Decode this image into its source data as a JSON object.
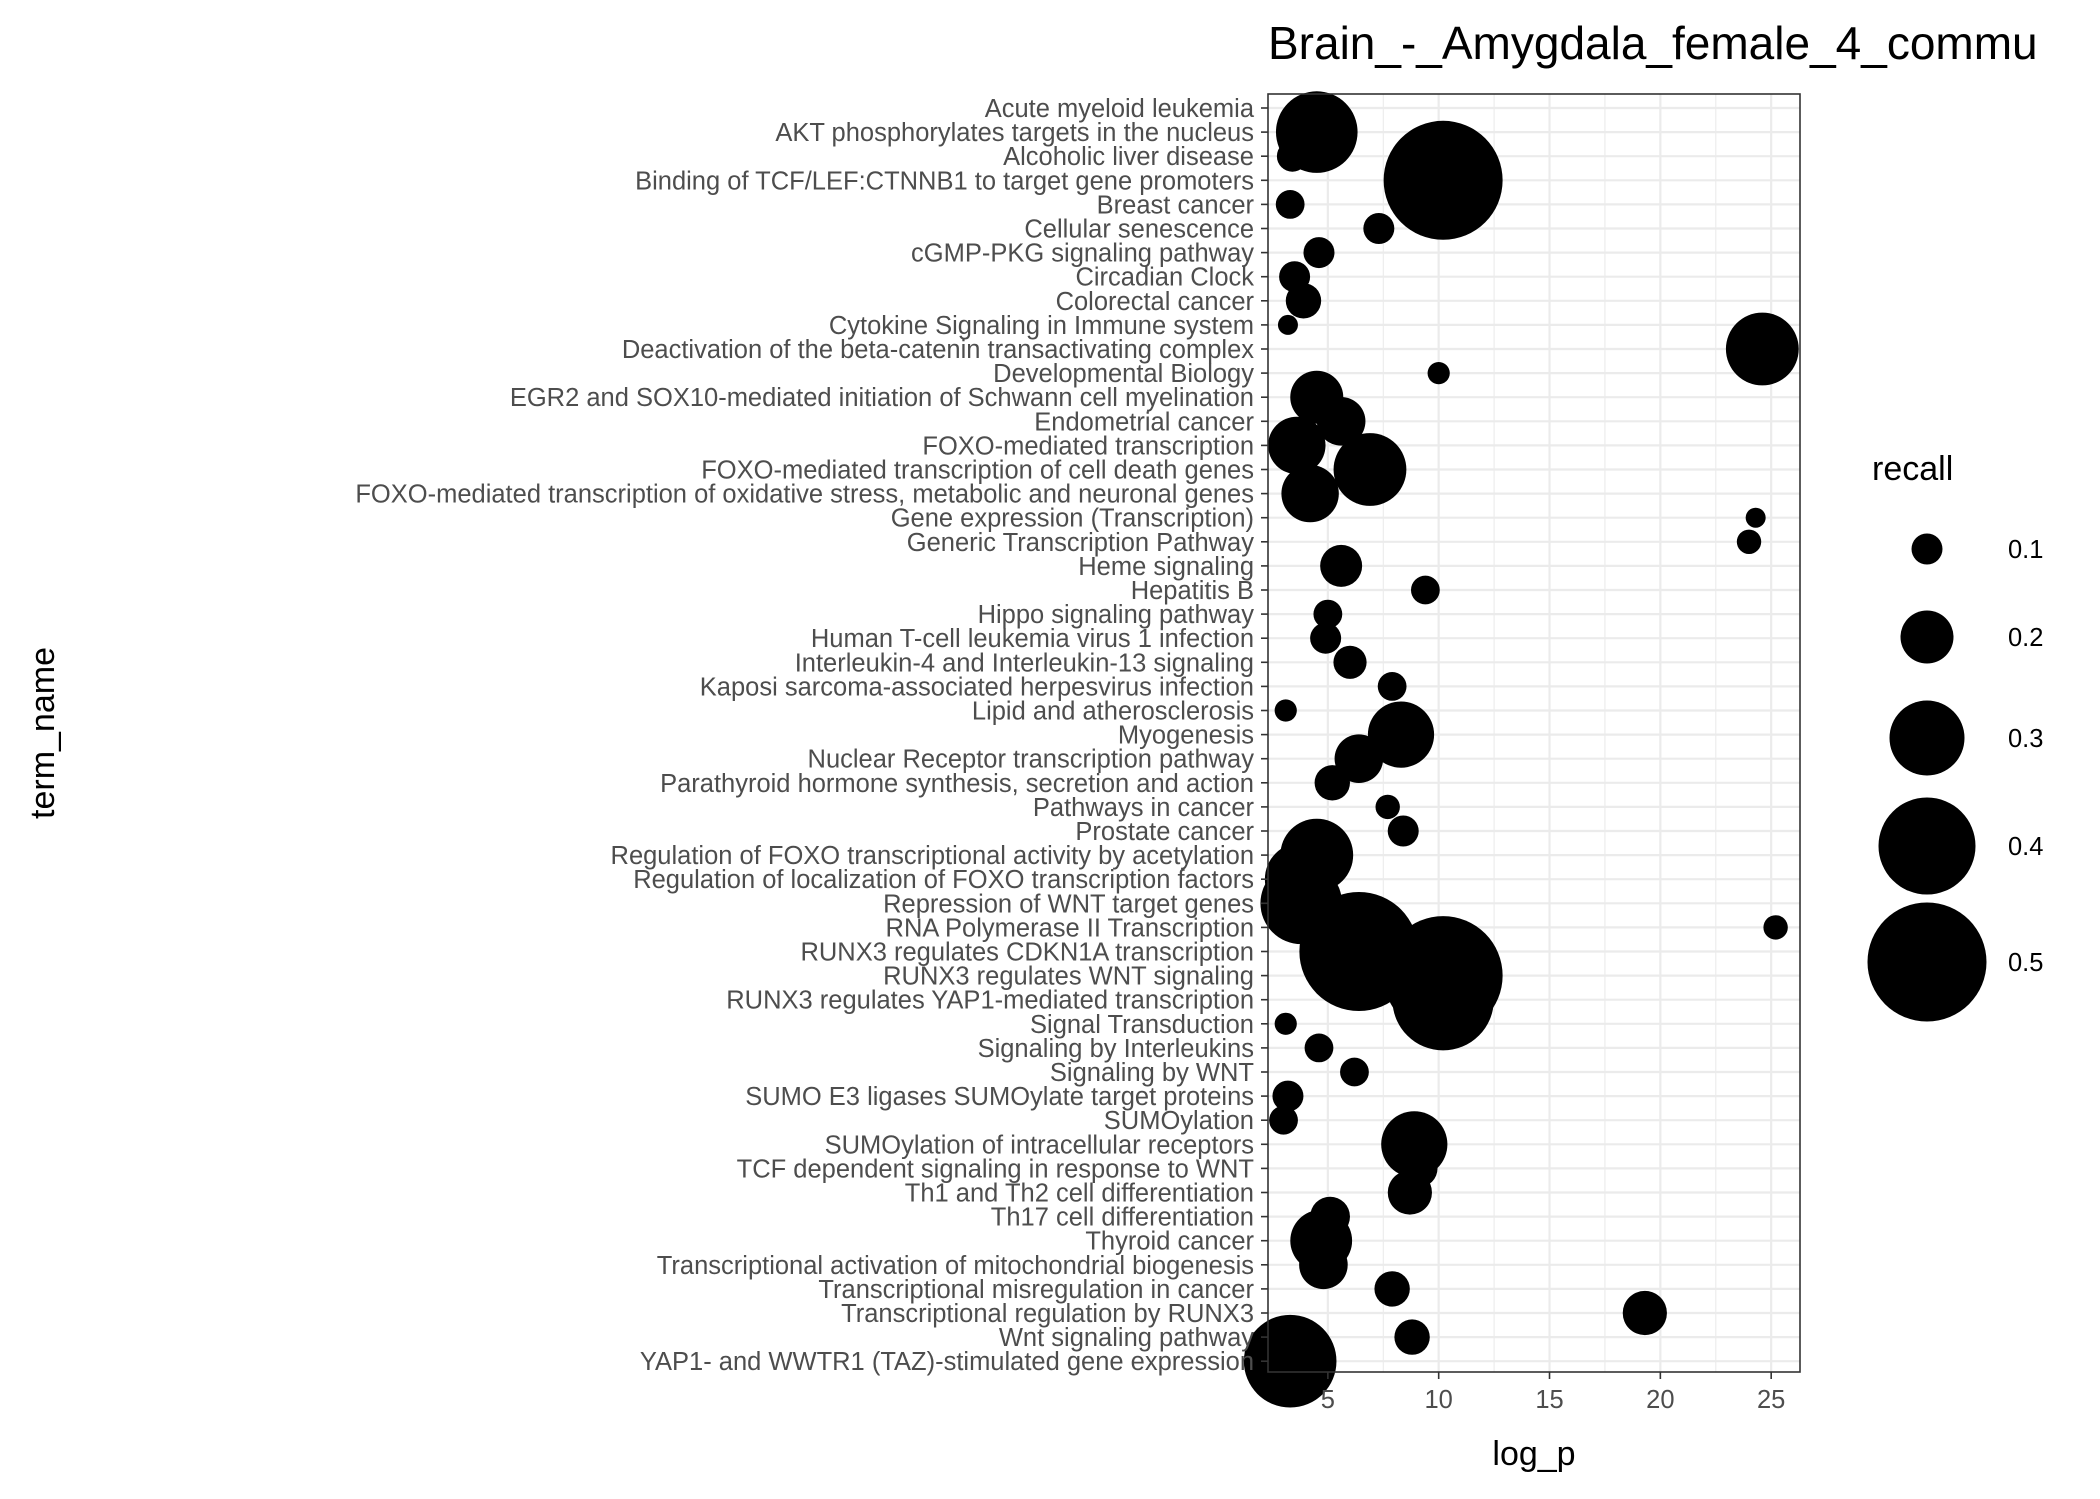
{
  "chart_data": {
    "type": "scatter",
    "title": "Brain_-_Amygdala_female_4_commu",
    "xlabel": "log_p",
    "ylabel": "term_name",
    "xlim": [
      2.3,
      26.3
    ],
    "x_ticks": [
      5,
      10,
      15,
      20,
      25
    ],
    "grid": true,
    "legend_position": "right",
    "marker_color": "#000000",
    "grid_color": "#ebebeb",
    "panel_border_color": "#333333",
    "size_legend": {
      "title": "recall",
      "values": [
        0.1,
        0.2,
        0.3,
        0.4,
        0.5
      ],
      "labels": [
        "0.1",
        "0.2",
        "0.3",
        "0.4",
        "0.5"
      ]
    },
    "points": [
      {
        "term": "YAP1- and WWTR1 (TAZ)-stimulated gene expression",
        "log_p": 3.3,
        "recall": 0.38
      },
      {
        "term": "Wnt signaling pathway",
        "log_p": 8.8,
        "recall": 0.12
      },
      {
        "term": "Transcriptional regulation by RUNX3",
        "log_p": 19.3,
        "recall": 0.16
      },
      {
        "term": "Transcriptional misregulation in cancer",
        "log_p": 7.9,
        "recall": 0.12
      },
      {
        "term": "Transcriptional activation of mitochondrial biogenesis",
        "log_p": 4.8,
        "recall": 0.18
      },
      {
        "term": "Thyroid cancer",
        "log_p": 4.7,
        "recall": 0.24
      },
      {
        "term": "Th17 cell differentiation",
        "log_p": 5.1,
        "recall": 0.14
      },
      {
        "term": "Th1 and Th2 cell differentiation",
        "log_p": 8.7,
        "recall": 0.16
      },
      {
        "term": "TCF dependent signaling in response to WNT",
        "log_p": 9.1,
        "recall": 0.13
      },
      {
        "term": "SUMOylation of intracellular receptors",
        "log_p": 8.9,
        "recall": 0.26
      },
      {
        "term": "SUMOylation",
        "log_p": 3.0,
        "recall": 0.09
      },
      {
        "term": "SUMO E3 ligases SUMOylate target proteins",
        "log_p": 3.2,
        "recall": 0.1
      },
      {
        "term": "Signaling by WNT",
        "log_p": 6.2,
        "recall": 0.09
      },
      {
        "term": "Signaling by Interleukins",
        "log_p": 4.6,
        "recall": 0.09
      },
      {
        "term": "Signal Transduction",
        "log_p": 3.1,
        "recall": 0.06
      },
      {
        "term": "RUNX3 regulates YAP1-mediated transcription",
        "log_p": 10.2,
        "recall": 0.42
      },
      {
        "term": "RUNX3 regulates WNT signaling",
        "log_p": 10.2,
        "recall": 0.5
      },
      {
        "term": "RUNX3 regulates CDKN1A transcription",
        "log_p": 6.4,
        "recall": 0.5
      },
      {
        "term": "RNA Polymerase II Transcription",
        "log_p": 25.2,
        "recall": 0.07
      },
      {
        "term": "Repression of WNT target genes",
        "log_p": 3.8,
        "recall": 0.33
      },
      {
        "term": "Regulation of localization of FOXO transcription factors",
        "log_p": 3.8,
        "recall": 0.29
      },
      {
        "term": "Regulation of FOXO transcriptional activity by acetylation",
        "log_p": 4.5,
        "recall": 0.29
      },
      {
        "term": "Prostate cancer",
        "log_p": 8.4,
        "recall": 0.1
      },
      {
        "term": "Pathways in cancer",
        "log_p": 7.7,
        "recall": 0.07
      },
      {
        "term": "Parathyroid hormone synthesis, secretion and action",
        "log_p": 5.2,
        "recall": 0.12
      },
      {
        "term": "Nuclear Receptor transcription pathway",
        "log_p": 6.4,
        "recall": 0.18
      },
      {
        "term": "Myogenesis",
        "log_p": 8.3,
        "recall": 0.26
      },
      {
        "term": "Lipid and atherosclerosis",
        "log_p": 3.1,
        "recall": 0.06
      },
      {
        "term": "Kaposi sarcoma-associated herpesvirus infection",
        "log_p": 7.9,
        "recall": 0.09
      },
      {
        "term": "Interleukin-4 and Interleukin-13 signaling",
        "log_p": 6.0,
        "recall": 0.11
      },
      {
        "term": "Human T-cell leukemia virus 1 infection",
        "log_p": 4.9,
        "recall": 0.1
      },
      {
        "term": "Hippo signaling pathway",
        "log_p": 5.0,
        "recall": 0.09
      },
      {
        "term": "Hepatitis B",
        "log_p": 9.4,
        "recall": 0.09
      },
      {
        "term": "Heme signaling",
        "log_p": 5.6,
        "recall": 0.15
      },
      {
        "term": "Generic Transcription Pathway",
        "log_p": 24.0,
        "recall": 0.07
      },
      {
        "term": "Gene expression (Transcription)",
        "log_p": 24.3,
        "recall": 0.05
      },
      {
        "term": "FOXO-mediated transcription of oxidative stress, metabolic and neuronal genes",
        "log_p": 4.2,
        "recall": 0.22
      },
      {
        "term": "FOXO-mediated transcription of cell death genes",
        "log_p": 6.9,
        "recall": 0.29
      },
      {
        "term": "FOXO-mediated transcription",
        "log_p": 3.6,
        "recall": 0.22
      },
      {
        "term": "Endometrial cancer",
        "log_p": 5.6,
        "recall": 0.18
      },
      {
        "term": "EGR2 and SOX10-mediated initiation of Schwann cell myelination",
        "log_p": 4.5,
        "recall": 0.2
      },
      {
        "term": "Developmental Biology",
        "log_p": 10.0,
        "recall": 0.06
      },
      {
        "term": "Deactivation of the beta-catenin transactivating complex",
        "log_p": 24.6,
        "recall": 0.29
      },
      {
        "term": "Cytokine Signaling in Immune system",
        "log_p": 3.2,
        "recall": 0.05
      },
      {
        "term": "Colorectal cancer",
        "log_p": 3.9,
        "recall": 0.12
      },
      {
        "term": "Circadian Clock",
        "log_p": 3.5,
        "recall": 0.1
      },
      {
        "term": "cGMP-PKG signaling pathway",
        "log_p": 4.6,
        "recall": 0.1
      },
      {
        "term": "Cellular senescence",
        "log_p": 7.3,
        "recall": 0.1
      },
      {
        "term": "Breast cancer",
        "log_p": 3.3,
        "recall": 0.09
      },
      {
        "term": "Binding of TCF/LEF:CTNNB1 to target gene promoters",
        "log_p": 10.2,
        "recall": 0.5
      },
      {
        "term": "Alcoholic liver disease",
        "log_p": 3.4,
        "recall": 0.1
      },
      {
        "term": "AKT phosphorylates targets in the nucleus",
        "log_p": 4.5,
        "recall": 0.33
      },
      {
        "term": "Acute myeloid leukemia",
        "log_p": 4.8,
        "recall": 0.1
      }
    ]
  }
}
